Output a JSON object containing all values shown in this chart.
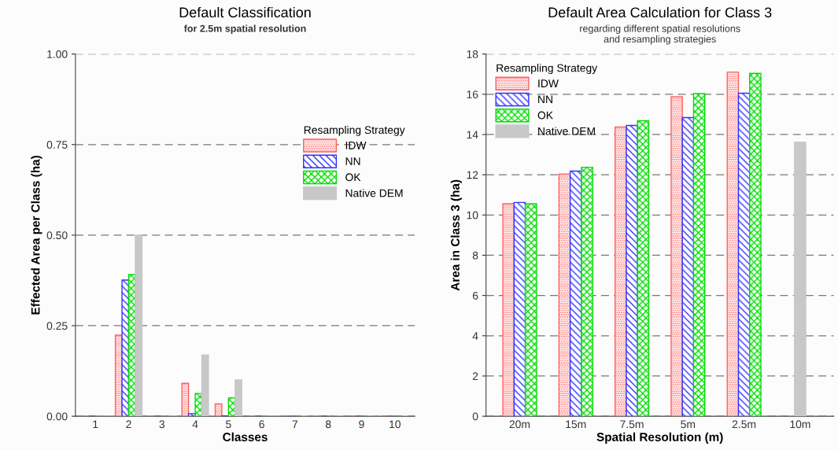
{
  "chart_data": [
    {
      "type": "bar",
      "title": "Default Classification",
      "subtitle": "for 2.5m spatial resolution",
      "xlabel": "Classes",
      "ylabel": "Effected Area per Class (ha)",
      "legend_title": "Resampling Strategy",
      "categories": [
        "1",
        "2",
        "3",
        "4",
        "5",
        "6",
        "7",
        "8",
        "9",
        "10"
      ],
      "series": [
        {
          "name": "IDW",
          "color": "#ff6060",
          "values": [
            0,
            0.224,
            0,
            0.091,
            0.034,
            0,
            0,
            0,
            0,
            0
          ]
        },
        {
          "name": "NN",
          "color": "#3030ff",
          "values": [
            0,
            0.376,
            0,
            0.007,
            0.001,
            0,
            0,
            0,
            0,
            0
          ]
        },
        {
          "name": "OK",
          "color": "#00dd00",
          "values": [
            0,
            0.391,
            0,
            0.063,
            0.051,
            0,
            0,
            0,
            0,
            0
          ]
        },
        {
          "name": "Native DEM",
          "color": "#c8c8c8",
          "values": [
            0,
            0.5,
            0,
            0.169,
            0.1,
            0,
            0,
            0,
            0,
            0
          ]
        }
      ],
      "ylim": [
        0,
        1
      ],
      "yticks": [
        {
          "value": 0,
          "label": "0.00"
        },
        {
          "value": 0.25,
          "label": "0.25"
        },
        {
          "value": 0.5,
          "label": "0.50"
        },
        {
          "value": 0.75,
          "label": "0.75"
        },
        {
          "value": 1,
          "label": "1.00"
        }
      ],
      "grid": "y",
      "legend": "right"
    },
    {
      "type": "bar",
      "title": "Default Area Calculation for Class 3",
      "subtitle": "regarding different spatial resolutions\nand resampling strategies",
      "xlabel": "Spatial Resolution (m)",
      "ylabel": "Area in Class 3 (ha)",
      "legend_title": "Resampling Strategy",
      "categories": [
        "20m",
        "15m",
        "7.5m",
        "5m",
        "2.5m",
        "10m"
      ],
      "series": [
        {
          "name": "IDW",
          "color": "#ff6060",
          "values": [
            10.56,
            12.04,
            14.37,
            15.88,
            17.1,
            null
          ]
        },
        {
          "name": "NN",
          "color": "#3030ff",
          "values": [
            10.62,
            12.18,
            14.45,
            14.84,
            16.05,
            null
          ]
        },
        {
          "name": "OK",
          "color": "#00dd00",
          "values": [
            10.56,
            12.37,
            14.68,
            16.03,
            17.04,
            null
          ]
        },
        {
          "name": "Native DEM",
          "color": "#c8c8c8",
          "values": [
            null,
            null,
            null,
            null,
            null,
            13.62
          ]
        }
      ],
      "ylim": [
        0,
        18
      ],
      "yticks": [
        0,
        2,
        4,
        6,
        8,
        10,
        12,
        14,
        16,
        18
      ],
      "grid": "y",
      "legend": "top left"
    }
  ]
}
